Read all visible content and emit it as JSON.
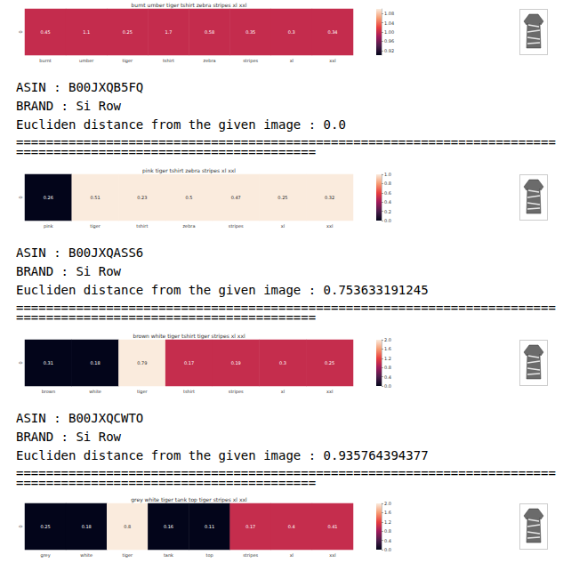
{
  "chart_data": [
    {
      "type": "heatmap",
      "title": "burnt umber tiger tshirt zebra stripes xl xxl",
      "categories": [
        "burnt",
        "umber",
        "tiger",
        "tshirt",
        "zebra",
        "stripes",
        "xl",
        "xxl"
      ],
      "y_categories": [
        "0"
      ],
      "values": [
        1,
        1,
        1,
        1,
        1,
        1,
        1,
        1
      ],
      "annotations": [
        0.45,
        1.1,
        0.25,
        1.7,
        0.58,
        0.35,
        0.3,
        0.34
      ],
      "color_range": [
        0.9,
        1.1
      ],
      "color_ticks": [
        0.92,
        0.96,
        {
          "value": 1,
          "label": "1.00"
        },
        1.04,
        1.08
      ]
    },
    {
      "type": "heatmap",
      "title": "pink tiger tshirt zebra stripes xl xxl",
      "categories": [
        "pink",
        "tiger",
        "tshirt",
        "zebra",
        "stripes",
        "xl",
        "xxl"
      ],
      "y_categories": [
        "0"
      ],
      "values": [
        0,
        1,
        1,
        1,
        1,
        1,
        1
      ],
      "annotations": [
        0.26,
        0.51,
        0.23,
        0.5,
        0.47,
        0.25,
        0.32
      ],
      "color_range": [
        0,
        1
      ],
      "color_ticks": [
        {
          "value": 0,
          "label": "0.0"
        },
        0.2,
        0.4,
        0.6,
        0.8,
        {
          "value": 1,
          "label": "1.0"
        }
      ]
    },
    {
      "type": "heatmap",
      "title": "brown white tiger tshirt tiger stripes xl xxl",
      "categories": [
        "brown",
        "white",
        "tiger",
        "tshirt",
        "stripes",
        "xl",
        "xxl"
      ],
      "y_categories": [
        "0"
      ],
      "values": [
        0,
        0,
        2,
        1,
        1,
        1,
        1
      ],
      "annotations": [
        0.31,
        0.18,
        0.79,
        0.17,
        0.19,
        0.3,
        0.25
      ],
      "color_range": [
        0,
        2
      ],
      "color_ticks": [
        {
          "value": 0,
          "label": "0.0"
        },
        0.4,
        0.8,
        1.2,
        1.6,
        {
          "value": 2,
          "label": "2.0"
        }
      ]
    },
    {
      "type": "heatmap",
      "title": "grey white tiger tank top tiger stripes xl xxl",
      "categories": [
        "grey",
        "white",
        "tiger",
        "tank",
        "top",
        "stripes",
        "xl",
        "xxl"
      ],
      "y_categories": [
        "0"
      ],
      "values": [
        0,
        0,
        2,
        0,
        0,
        1,
        1,
        1
      ],
      "annotations": [
        0.25,
        0.18,
        0.8,
        0.16,
        0.11,
        0.17,
        0.4,
        0.41
      ],
      "color_range": [
        0,
        2
      ],
      "color_ticks": [
        {
          "value": 0,
          "label": "0.0"
        },
        0.4,
        0.8,
        1.2,
        1.6,
        {
          "value": 2,
          "label": "2.0"
        }
      ]
    }
  ],
  "records": [
    {
      "lines": [
        "ASIN : B00JXQB5FQ",
        "BRAND : Si Row",
        "Eucliden distance from the given image : 0.0"
      ]
    },
    {
      "lines": [
        "ASIN : B00JXQASS6",
        "BRAND : Si Row",
        "Eucliden distance from the given image : 0.753633191245"
      ]
    },
    {
      "lines": [
        "ASIN : B00JXQCWTO",
        "BRAND : Si Row",
        "Eucliden distance from the given image : 0.935764394377"
      ]
    }
  ],
  "separator": "================================================================================================================"
}
